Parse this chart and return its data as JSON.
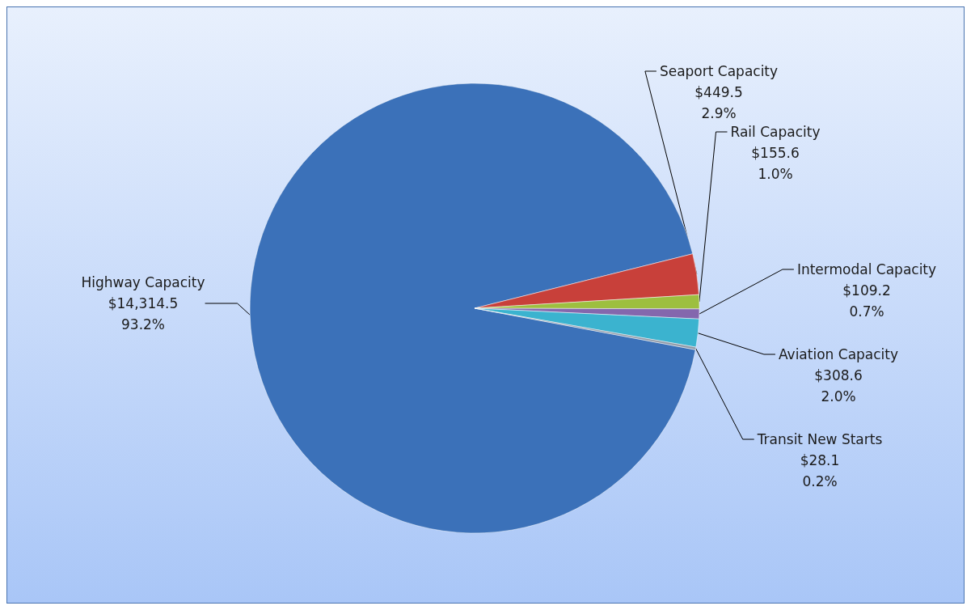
{
  "chart_data": {
    "type": "pie",
    "categories": [
      "Highway Capacity",
      "Seaport Capacity",
      "Rail Capacity",
      "Intermodal Capacity",
      "Aviation Capacity",
      "Transit New Starts"
    ],
    "values": [
      14314.5,
      449.5,
      155.6,
      109.2,
      308.6,
      28.1
    ],
    "value_labels": [
      "$14,314.5\n93.2%",
      "$449.5\n2.9%",
      "$155.6\n1.0%",
      "$109.2\n0.7%",
      "$308.6\n2.0%",
      "$28.1\n0.2%"
    ],
    "colors": [
      "#3b71b9",
      "#c8403a",
      "#9dbf3f",
      "#8467ad",
      "#3bb3cf",
      "#8f9aa8"
    ],
    "legend": false
  }
}
